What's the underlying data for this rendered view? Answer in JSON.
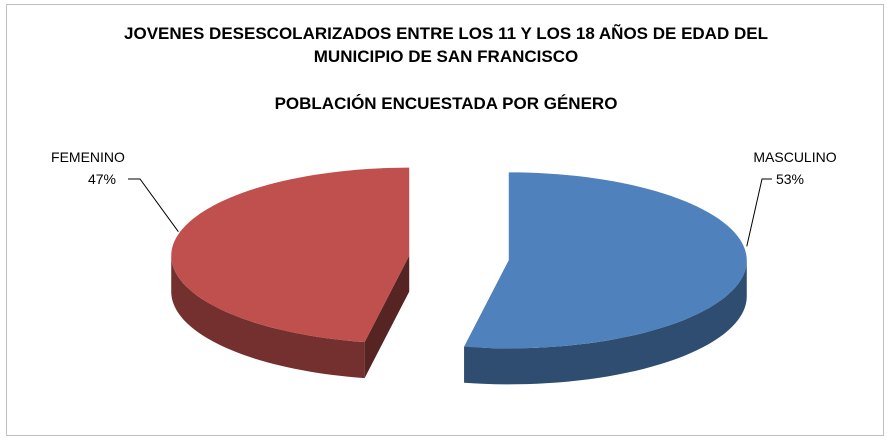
{
  "chart_data": {
    "type": "pie",
    "title": "JOVENES DESESCOLARIZADOS ENTRE LOS 11 Y LOS 18 AÑOS DE EDAD DEL MUNICIPIO DE SAN FRANCISCO",
    "subtitle": "POBLACIÓN ENCUESTADA POR GÉNERO",
    "categories": [
      "MASCULINO",
      "FEMENINO"
    ],
    "values": [
      53,
      47
    ],
    "value_labels": [
      "53%",
      "47%"
    ],
    "colors": [
      "#4f81bd",
      "#c0504d"
    ],
    "exploded": true,
    "three_d": true
  }
}
